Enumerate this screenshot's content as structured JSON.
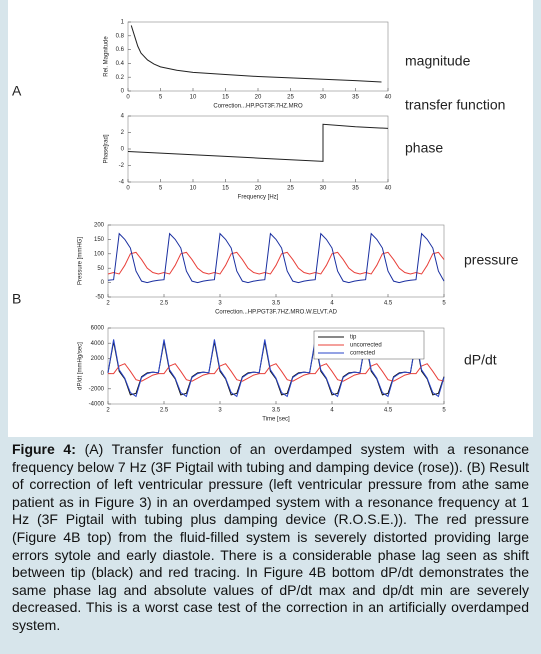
{
  "chart_data": [
    {
      "type": "line",
      "y_label": "Rel. Magnitude",
      "x_label": "Correction...HP.PGT3F.7HZ.MRO",
      "x": [
        0.5,
        1,
        1.5,
        2,
        3,
        4,
        5,
        7.5,
        10,
        15,
        20,
        25,
        30,
        35,
        39
      ],
      "series": [
        {
          "color": "#222222",
          "values": [
            0.95,
            0.8,
            0.65,
            0.55,
            0.45,
            0.39,
            0.35,
            0.3,
            0.27,
            0.24,
            0.21,
            0.19,
            0.17,
            0.15,
            0.13
          ]
        }
      ],
      "xlim": [
        0,
        40
      ],
      "xticks": [
        0,
        5,
        10,
        15,
        20,
        25,
        30,
        35,
        40
      ],
      "ylim": [
        0,
        1
      ],
      "yticks": [
        0,
        0.2,
        0.4,
        0.6,
        0.8,
        1
      ]
    },
    {
      "type": "line",
      "y_label": "Phase[rad]",
      "x_label": "Frequency [Hz]",
      "x": [
        0,
        5,
        10,
        15,
        20,
        25,
        30,
        30,
        35,
        40
      ],
      "series": [
        {
          "color": "#222222",
          "values": [
            -0.3,
            -0.5,
            -0.7,
            -0.9,
            -1.1,
            -1.3,
            -1.5,
            3.0,
            2.7,
            2.5
          ]
        }
      ],
      "xlim": [
        0,
        40
      ],
      "xticks": [
        0,
        5,
        10,
        15,
        20,
        25,
        30,
        35,
        40
      ],
      "ylim": [
        -4,
        4
      ],
      "yticks": [
        -4,
        -2,
        0,
        2,
        4
      ]
    },
    {
      "type": "line",
      "y_label": "Pressure [mmHG]",
      "x_label": "Correction...HP.PGT3F.7HZ.MRO.W.ELVT.AD",
      "x": [
        2,
        2.05,
        2.1,
        2.15,
        2.2,
        2.25,
        2.3,
        2.35,
        2.4,
        2.45,
        2.5,
        2.55,
        2.6,
        2.65,
        2.7,
        2.75,
        2.8,
        2.85,
        2.9,
        2.95,
        3,
        3.05,
        3.1,
        3.15,
        3.2,
        3.25,
        3.3,
        3.35,
        3.4,
        3.45,
        3.5,
        3.55,
        3.6,
        3.65,
        3.7,
        3.75,
        3.8,
        3.85,
        3.9,
        3.95,
        4,
        4.05,
        4.1,
        4.15,
        4.2,
        4.25,
        4.3,
        4.35,
        4.4,
        4.45,
        4.5,
        4.55,
        4.6,
        4.65,
        4.7,
        4.75,
        4.8,
        4.85,
        4.9,
        4.95,
        5
      ],
      "series": [
        {
          "color": "#e8403a",
          "values": [
            30,
            35,
            30,
            60,
            100,
            105,
            80,
            50,
            35,
            30,
            35,
            30,
            60,
            100,
            105,
            80,
            50,
            35,
            30,
            35,
            30,
            60,
            100,
            105,
            80,
            50,
            35,
            30,
            35,
            30,
            60,
            100,
            105,
            80,
            50,
            35,
            30,
            35,
            30,
            60,
            100,
            105,
            80,
            50,
            35,
            30,
            35,
            30,
            60,
            100,
            105,
            80,
            50,
            35,
            30,
            35,
            30,
            60,
            100,
            105,
            80
          ]
        },
        {
          "color": "#1a2fa0",
          "values": [
            8,
            10,
            170,
            150,
            120,
            40,
            5,
            0,
            5,
            8,
            10,
            170,
            150,
            120,
            40,
            5,
            0,
            5,
            8,
            10,
            170,
            150,
            120,
            40,
            5,
            0,
            5,
            8,
            10,
            170,
            150,
            120,
            40,
            5,
            0,
            5,
            8,
            10,
            170,
            150,
            120,
            40,
            5,
            0,
            5,
            8,
            10,
            170,
            150,
            120,
            40,
            5,
            0,
            5,
            8,
            10,
            170,
            150,
            120,
            40,
            5
          ]
        }
      ],
      "xlim": [
        2,
        5
      ],
      "xticks": [
        2,
        2.5,
        3,
        3.5,
        4,
        4.5,
        5
      ],
      "ylim": [
        -50,
        200
      ],
      "yticks": [
        -50,
        0,
        50,
        100,
        150,
        200
      ]
    },
    {
      "type": "line",
      "y_label": "dP/dt [mmHg/sec]",
      "x_label": "Time [sec]",
      "legend": "upper right",
      "x": [
        2,
        2.05,
        2.1,
        2.15,
        2.2,
        2.25,
        2.3,
        2.35,
        2.4,
        2.45,
        2.5,
        2.55,
        2.6,
        2.65,
        2.7,
        2.75,
        2.8,
        2.85,
        2.9,
        2.95,
        3,
        3.05,
        3.1,
        3.15,
        3.2,
        3.25,
        3.3,
        3.35,
        3.4,
        3.45,
        3.5,
        3.55,
        3.6,
        3.65,
        3.7,
        3.75,
        3.8,
        3.85,
        3.9,
        3.95,
        4,
        4.05,
        4.1,
        4.15,
        4.2,
        4.25,
        4.3,
        4.35,
        4.4,
        4.45,
        4.5,
        4.55,
        4.6,
        4.65,
        4.7,
        4.75,
        4.8,
        4.85,
        4.9,
        4.95,
        5
      ],
      "series": [
        {
          "name": "tip",
          "color": "#111111",
          "values": [
            100,
            4200,
            300,
            -700,
            -2800,
            -2600,
            -400,
            100,
            200,
            100,
            4200,
            300,
            -700,
            -2800,
            -2600,
            -400,
            100,
            200,
            100,
            4200,
            300,
            -700,
            -2800,
            -2600,
            -400,
            100,
            200,
            100,
            4200,
            300,
            -700,
            -2800,
            -2600,
            -400,
            100,
            200,
            100,
            4200,
            300,
            -700,
            -2800,
            -2600,
            -400,
            100,
            200,
            100,
            4200,
            300,
            -700,
            -2800,
            -2600,
            -400,
            100,
            200,
            100,
            4200,
            300,
            -700,
            -2800,
            -2600,
            -400
          ]
        },
        {
          "name": "uncorrected",
          "color": "#e8403a",
          "values": [
            0,
            0,
            1000,
            1300,
            300,
            -800,
            -1000,
            -600,
            -200,
            0,
            0,
            1000,
            1300,
            300,
            -800,
            -1000,
            -600,
            -200,
            0,
            0,
            1000,
            1300,
            300,
            -800,
            -1000,
            -600,
            -200,
            0,
            0,
            1000,
            1300,
            300,
            -800,
            -1000,
            -600,
            -200,
            0,
            0,
            1000,
            1300,
            300,
            -800,
            -1000,
            -600,
            -200,
            0,
            0,
            1000,
            1300,
            300,
            -800,
            -1000,
            -600,
            -200,
            0,
            0,
            1000,
            1300,
            300,
            -800,
            -1000
          ]
        },
        {
          "name": "corrected",
          "color": "#2a45c8",
          "values": [
            100,
            4500,
            500,
            -600,
            -2500,
            -3000,
            -500,
            0,
            200,
            100,
            4500,
            500,
            -600,
            -2500,
            -3000,
            -500,
            0,
            200,
            100,
            4500,
            500,
            -600,
            -2500,
            -3000,
            -500,
            0,
            200,
            100,
            4500,
            500,
            -600,
            -2500,
            -3000,
            -500,
            0,
            200,
            100,
            4500,
            500,
            -600,
            -2500,
            -3000,
            -500,
            0,
            200,
            100,
            4500,
            500,
            -600,
            -2500,
            -3000,
            -500,
            0,
            200,
            100,
            4500,
            500,
            -600,
            -2500,
            -3000,
            -500
          ]
        }
      ],
      "xlim": [
        2,
        5
      ],
      "xticks": [
        2,
        2.5,
        3,
        3.5,
        4,
        4.5,
        5
      ],
      "ylim": [
        -4000,
        6000
      ],
      "yticks": [
        -4000,
        -2000,
        0,
        2000,
        4000,
        6000
      ]
    }
  ],
  "panel_labels": [
    "A",
    "B"
  ],
  "annotations": [
    "magnitude",
    "transfer function",
    "phase",
    "pressure",
    "dP/dt"
  ],
  "caption": {
    "label": "Figure 4:",
    "text": "(A) Transfer function of an overdamped system with a resonance frequency below 7 Hz (3F Pigtail with tubing and damping device (rose)). (B) Result of correction of left ventricular pressure (left ventricular pressure from athe same patient as in Figure 3) in an overdamped system with a resonance frequency at 1 Hz (3F Pigtail with tubing plus damping device (R.O.S.E.)). The red pressure (Figure 4B top) from the fluid-filled system is severely distorted providing large errors sytole and early diastole. There is a considerable phase lag seen as shift between tip (black) and red tracing. In Figure 4B bottom dP/dt demonstrates the same phase lag and absolute values of dP/dt max and dp/dt min are severely decreased. This is a worst case test of the correction in an artificially overdamped system."
  }
}
